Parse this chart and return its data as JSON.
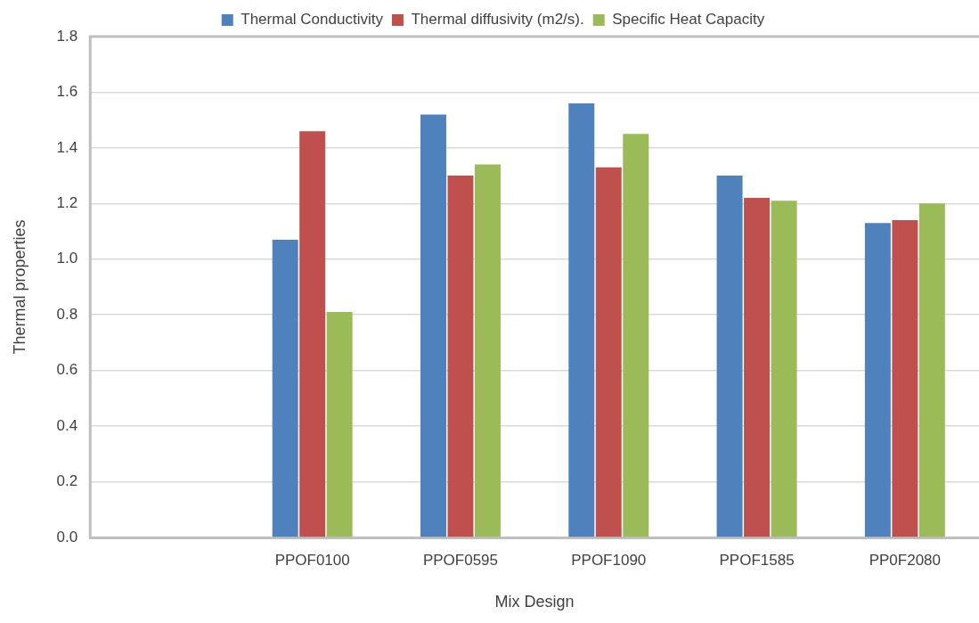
{
  "chart_data": {
    "type": "bar",
    "xlabel": "Mix Design",
    "ylabel": "Thermal properties",
    "categories": [
      null,
      "PPOF0100",
      "PPOF0595",
      "PPOF1090",
      "PPOF1585",
      "PP0F2080"
    ],
    "series": [
      {
        "name": "Thermal Conductivity",
        "color": "#4f81bd",
        "values": [
          null,
          1.07,
          1.52,
          1.56,
          1.3,
          1.13
        ]
      },
      {
        "name": "Thermal diffusivity (m2/s).",
        "color": "#c0504d",
        "values": [
          null,
          1.46,
          1.3,
          1.33,
          1.22,
          1.14
        ]
      },
      {
        "name": "Specific Heat Capacity",
        "color": "#9bbb59",
        "values": [
          null,
          0.81,
          1.34,
          1.45,
          1.21,
          1.2
        ]
      }
    ],
    "ylim": [
      0,
      1.8
    ],
    "yticks": [
      {
        "value": 0,
        "label": "0.0"
      },
      {
        "value": 0.2,
        "label": "0.2"
      },
      {
        "value": 0.4,
        "label": "0.4"
      },
      {
        "value": 0.6,
        "label": "0.6"
      },
      {
        "value": 0.8,
        "label": "0.8"
      },
      {
        "value": 1,
        "label": "1.0"
      },
      {
        "value": 1.2,
        "label": "1.2"
      },
      {
        "value": 1.4,
        "label": "1.4"
      },
      {
        "value": 1.6,
        "label": "1.6"
      },
      {
        "value": 1.8,
        "label": "1.8"
      }
    ],
    "grid": "y",
    "legend": "top"
  }
}
